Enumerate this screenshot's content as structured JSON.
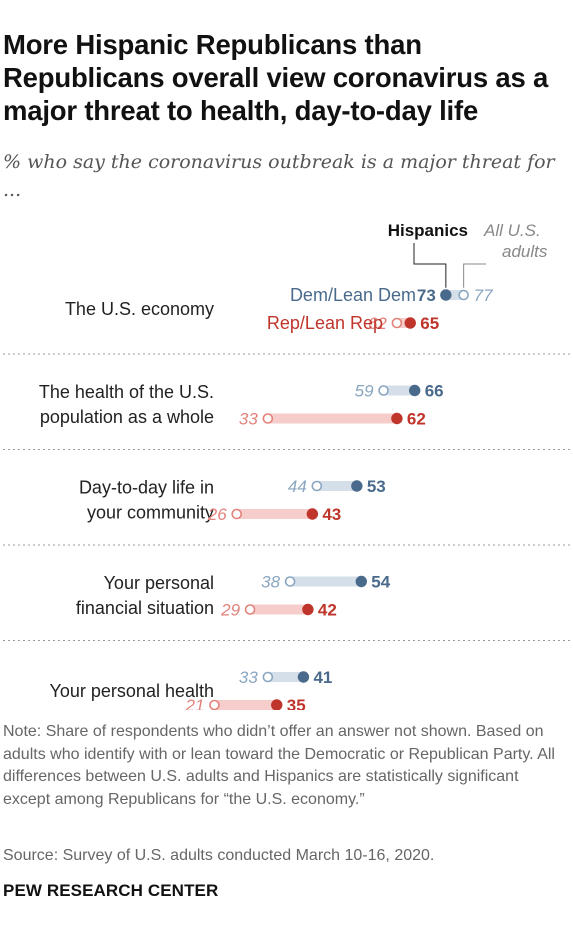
{
  "title": "More Hispanic Republicans than Republicans overall view coronavirus as a major threat to health, day-to-day life",
  "subtitle": "% who say the coronavirus outbreak is a major threat for ...",
  "legend": {
    "hispanics": "Hispanics",
    "all_adults_line1": "All U.S.",
    "all_adults_line2": "adults",
    "dem_label": "Dem/Lean Dem",
    "rep_label": "Rep/Lean Rep"
  },
  "colors": {
    "dem": "#4a6a8c",
    "dem_light": "#8aa6c1",
    "dem_bar": "#d5dfe9",
    "rep": "#c0352b",
    "rep_light": "#e3827a",
    "rep_bar": "#f6cdca",
    "divider": "#9a9a9a"
  },
  "chart_data": {
    "type": "dot",
    "xlim": [
      0,
      100
    ],
    "categories": [
      [
        "The U.S. economy"
      ],
      [
        "The health of the U.S.",
        "population as a whole"
      ],
      [
        "Day-to-day life in",
        "your community"
      ],
      [
        "Your personal",
        "financial situation"
      ],
      [
        "Your personal health"
      ]
    ],
    "series": [
      {
        "name": "Dem/Lean Dem – All U.S. adults",
        "values": [
          77,
          59,
          44,
          38,
          33
        ]
      },
      {
        "name": "Dem/Lean Dem – Hispanics",
        "values": [
          73,
          66,
          53,
          54,
          41
        ]
      },
      {
        "name": "Rep/Lean Rep – All U.S. adults",
        "values": [
          62,
          33,
          26,
          29,
          21
        ]
      },
      {
        "name": "Rep/Lean Rep – Hispanics",
        "values": [
          65,
          62,
          43,
          42,
          35
        ]
      }
    ]
  },
  "note": "Note: Share of respondents who didn’t offer an answer not shown. Based on adults who identify with or lean toward the Democratic or Republican Party. All differences between U.S. adults and Hispanics are statistically significant except among Republicans for “the U.S. economy.”",
  "source": "Source: Survey of U.S. adults conducted March 10-16, 2020.",
  "brand": "PEW RESEARCH CENTER"
}
